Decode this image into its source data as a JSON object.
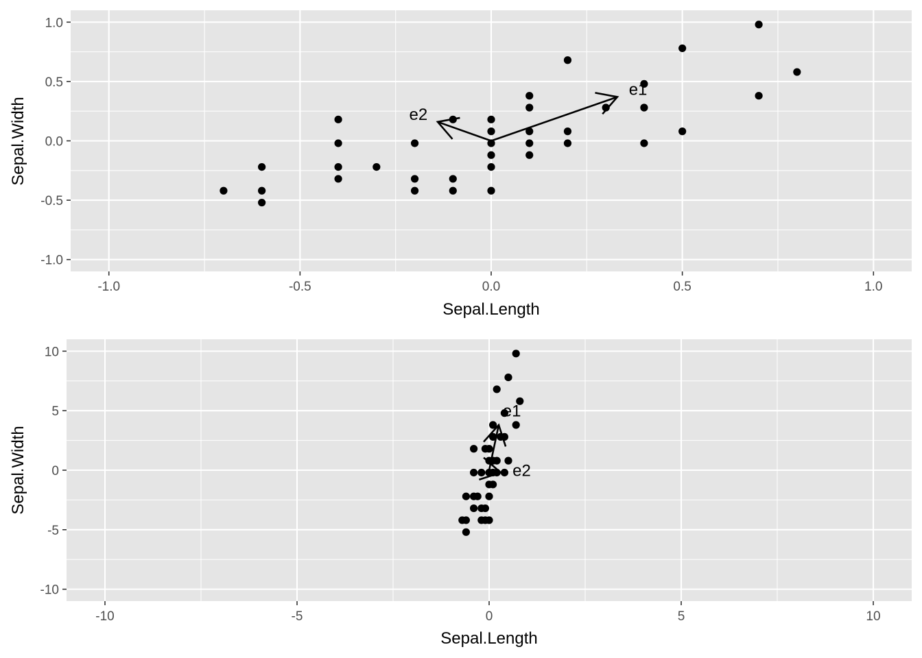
{
  "colors": {
    "panel": "#e5e5e5",
    "grid": "#ffffff",
    "point": "#000000",
    "text": "#4d4d4d"
  },
  "chart_data": [
    {
      "type": "scatter",
      "xlabel": "Sepal.Length",
      "ylabel": "Sepal.Width",
      "xlim": [
        -1.1,
        1.1
      ],
      "ylim": [
        -1.1,
        1.1
      ],
      "xticks": [
        -1.0,
        -0.5,
        0.0,
        0.5,
        1.0
      ],
      "yticks": [
        -1.0,
        -0.5,
        0.0,
        0.5,
        1.0
      ],
      "xtick_labels": [
        "-1.0",
        "-0.5",
        "0.0",
        "0.5",
        "1.0"
      ],
      "ytick_labels": [
        "-1.0",
        "-0.5",
        "0.0",
        "0.5",
        "1.0"
      ],
      "grid": true,
      "points": [
        [
          -0.7,
          -0.42
        ],
        [
          -0.6,
          -0.22
        ],
        [
          -0.6,
          -0.42
        ],
        [
          -0.6,
          -0.52
        ],
        [
          -0.4,
          0.18
        ],
        [
          -0.4,
          -0.02
        ],
        [
          -0.4,
          -0.22
        ],
        [
          -0.4,
          -0.32
        ],
        [
          -0.3,
          -0.22
        ],
        [
          -0.2,
          -0.02
        ],
        [
          -0.2,
          -0.32
        ],
        [
          -0.2,
          -0.42
        ],
        [
          -0.1,
          0.18
        ],
        [
          -0.1,
          -0.32
        ],
        [
          -0.1,
          -0.42
        ],
        [
          0.0,
          0.18
        ],
        [
          0.0,
          0.08
        ],
        [
          0.0,
          -0.02
        ],
        [
          0.0,
          -0.12
        ],
        [
          0.0,
          -0.22
        ],
        [
          0.0,
          -0.42
        ],
        [
          0.1,
          0.38
        ],
        [
          0.1,
          0.28
        ],
        [
          0.1,
          0.08
        ],
        [
          0.1,
          -0.02
        ],
        [
          0.1,
          -0.12
        ],
        [
          0.2,
          0.68
        ],
        [
          0.2,
          0.08
        ],
        [
          0.2,
          -0.02
        ],
        [
          0.3,
          0.28
        ],
        [
          0.4,
          0.48
        ],
        [
          0.4,
          0.28
        ],
        [
          0.4,
          -0.02
        ],
        [
          0.5,
          0.78
        ],
        [
          0.5,
          0.08
        ],
        [
          0.7,
          0.98
        ],
        [
          0.7,
          0.38
        ],
        [
          0.8,
          0.58
        ]
      ],
      "vectors": [
        {
          "label": "e1",
          "x": 0.33,
          "y": 0.37
        },
        {
          "label": "e2",
          "x": -0.14,
          "y": 0.16
        }
      ]
    },
    {
      "type": "scatter",
      "xlabel": "Sepal.Length",
      "ylabel": "Sepal.Width",
      "xlim": [
        -11,
        11
      ],
      "ylim": [
        -11,
        11
      ],
      "xticks": [
        -10,
        -5,
        0,
        5,
        10
      ],
      "yticks": [
        -10,
        -5,
        0,
        5,
        10
      ],
      "xtick_labels": [
        "-10",
        "-5",
        "0",
        "5",
        "10"
      ],
      "ytick_labels": [
        "-10",
        "-5",
        "0",
        "5",
        "10"
      ],
      "grid": true,
      "points": [
        [
          -0.7,
          -4.2
        ],
        [
          -0.6,
          -2.2
        ],
        [
          -0.6,
          -4.2
        ],
        [
          -0.6,
          -5.2
        ],
        [
          -0.4,
          1.8
        ],
        [
          -0.4,
          -0.2
        ],
        [
          -0.4,
          -2.2
        ],
        [
          -0.4,
          -3.2
        ],
        [
          -0.3,
          -2.2
        ],
        [
          -0.2,
          -0.2
        ],
        [
          -0.2,
          -3.2
        ],
        [
          -0.2,
          -4.2
        ],
        [
          -0.1,
          1.8
        ],
        [
          -0.1,
          -3.2
        ],
        [
          -0.1,
          -4.2
        ],
        [
          0.0,
          1.8
        ],
        [
          0.0,
          0.8
        ],
        [
          0.0,
          -0.2
        ],
        [
          0.0,
          -1.2
        ],
        [
          0.0,
          -2.2
        ],
        [
          0.0,
          -4.2
        ],
        [
          0.1,
          3.8
        ],
        [
          0.1,
          2.8
        ],
        [
          0.1,
          0.8
        ],
        [
          0.1,
          -0.2
        ],
        [
          0.1,
          -1.2
        ],
        [
          0.2,
          6.8
        ],
        [
          0.2,
          0.8
        ],
        [
          0.2,
          -0.2
        ],
        [
          0.3,
          2.8
        ],
        [
          0.4,
          4.8
        ],
        [
          0.4,
          2.8
        ],
        [
          0.4,
          -0.2
        ],
        [
          0.5,
          7.8
        ],
        [
          0.5,
          0.8
        ],
        [
          0.7,
          9.8
        ],
        [
          0.7,
          3.8
        ],
        [
          0.8,
          5.8
        ]
      ],
      "vectors": [
        {
          "label": "e1",
          "x": 0.25,
          "y": 3.8
        },
        {
          "label": "e2",
          "x": 0.3,
          "y": -0.2
        }
      ]
    }
  ]
}
